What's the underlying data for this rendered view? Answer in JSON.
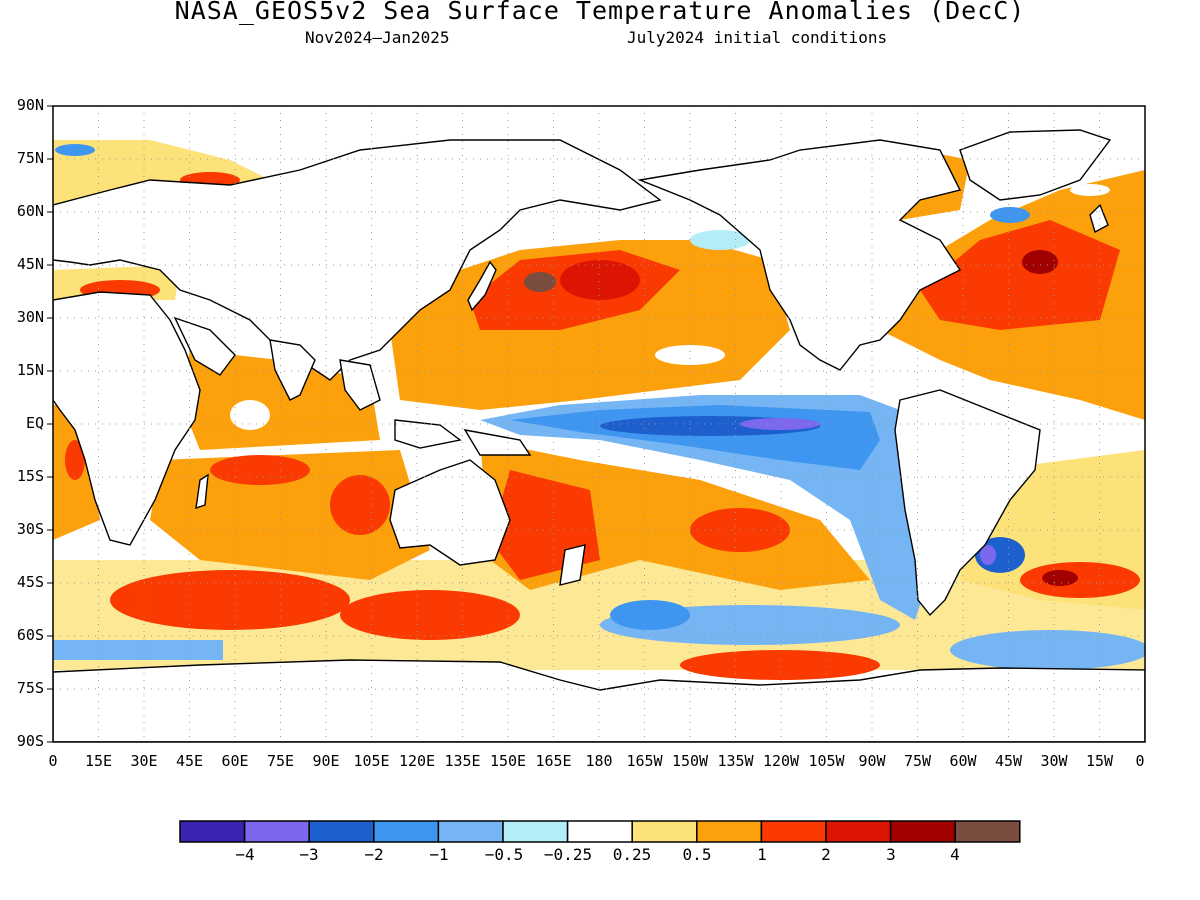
{
  "header": {
    "title": "NASA_GEOS5v2 Sea Surface Temperature Anomalies (DecC)",
    "subtitle_left": "Nov2024—Jan2025",
    "subtitle_right": "July2024 initial conditions"
  },
  "map": {
    "projection": "equirectangular",
    "lon_range": [
      0,
      360
    ],
    "lat_range": [
      -90,
      90
    ],
    "grid": "dotted",
    "lat_labels": [
      "90N",
      "75N",
      "60N",
      "45N",
      "30N",
      "15N",
      "EQ",
      "15S",
      "30S",
      "45S",
      "60S",
      "75S",
      "90S"
    ],
    "lon_labels": [
      "0",
      "15E",
      "30E",
      "45E",
      "60E",
      "75E",
      "90E",
      "105E",
      "120E",
      "135E",
      "150E",
      "165E",
      "180",
      "165W",
      "150W",
      "135W",
      "120W",
      "105W",
      "90W",
      "75W",
      "60W",
      "45W",
      "30W",
      "15W",
      "0"
    ]
  },
  "colorbar": {
    "colors": [
      "#3b22b0",
      "#7b68ee",
      "#1d5fcc",
      "#3f96f0",
      "#76b5f4",
      "#b4ecf8",
      "#ffffff",
      "#fde27a",
      "#fca10b",
      "#fa3a00",
      "#dc1402",
      "#a00000",
      "#7a4d40"
    ],
    "labels": [
      "−4",
      "−3",
      "−2",
      "−1",
      "−0.5",
      "−0.25",
      "0.25",
      "0.5",
      "1",
      "2",
      "3",
      "4"
    ]
  }
}
